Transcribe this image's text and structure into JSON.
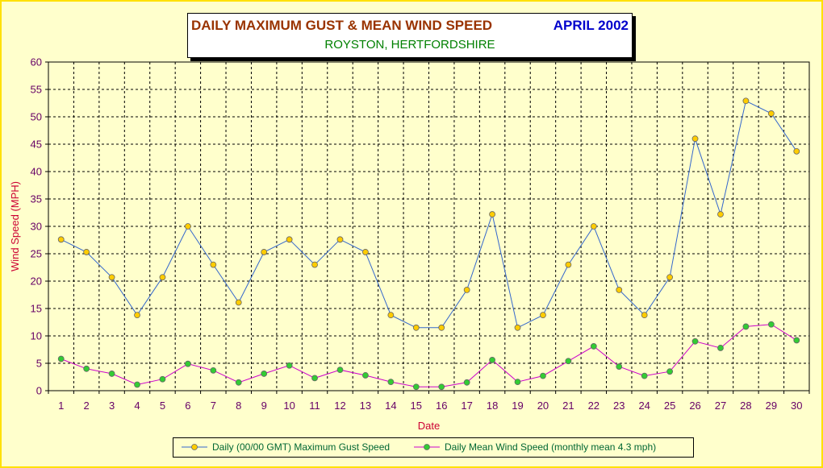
{
  "title": {
    "main": "DAILY MAXIMUM GUST & MEAN WIND SPEED",
    "date": "APRIL 2002",
    "subtitle": "ROYSTON, HERTFORDSHIRE"
  },
  "colors": {
    "gust_line": "#3366cc",
    "gust_marker": "#ffcc00",
    "mean_line": "#cc00cc",
    "mean_marker": "#33cc33",
    "plot_background": "#ffffcc"
  },
  "chart_data": {
    "type": "line",
    "xlabel": "Date",
    "ylabel": "Wind Speed (MPH)",
    "ylim": [
      0,
      60
    ],
    "ytick_step": 5,
    "grid": true,
    "legend_position": "bottom",
    "x": [
      1,
      2,
      3,
      4,
      5,
      6,
      7,
      8,
      9,
      10,
      11,
      12,
      13,
      14,
      15,
      16,
      17,
      18,
      19,
      20,
      21,
      22,
      23,
      24,
      25,
      26,
      27,
      28,
      29,
      30
    ],
    "series": [
      {
        "name": "Daily (00/00 GMT) Maximum Gust Speed",
        "values": [
          27.6,
          25.3,
          20.7,
          13.8,
          20.7,
          30,
          23,
          16.1,
          25.3,
          27.6,
          23,
          27.6,
          25.3,
          13.8,
          11.5,
          11.5,
          18.4,
          32.2,
          11.5,
          13.8,
          23,
          30,
          18.4,
          13.8,
          20.7,
          46,
          32.2,
          52.9,
          50.6,
          43.7
        ]
      },
      {
        "name": "Daily Mean Wind Speed (monthly mean 4.3 mph)",
        "values": [
          5.8,
          4,
          3.1,
          1.1,
          2.1,
          4.9,
          3.7,
          1.5,
          3.1,
          4.6,
          2.3,
          3.8,
          2.8,
          1.6,
          0.7,
          0.7,
          1.5,
          5.6,
          1.6,
          2.7,
          5.4,
          8.1,
          4.4,
          2.7,
          3.5,
          9,
          7.8,
          11.7,
          12.1,
          9.2
        ]
      }
    ]
  }
}
